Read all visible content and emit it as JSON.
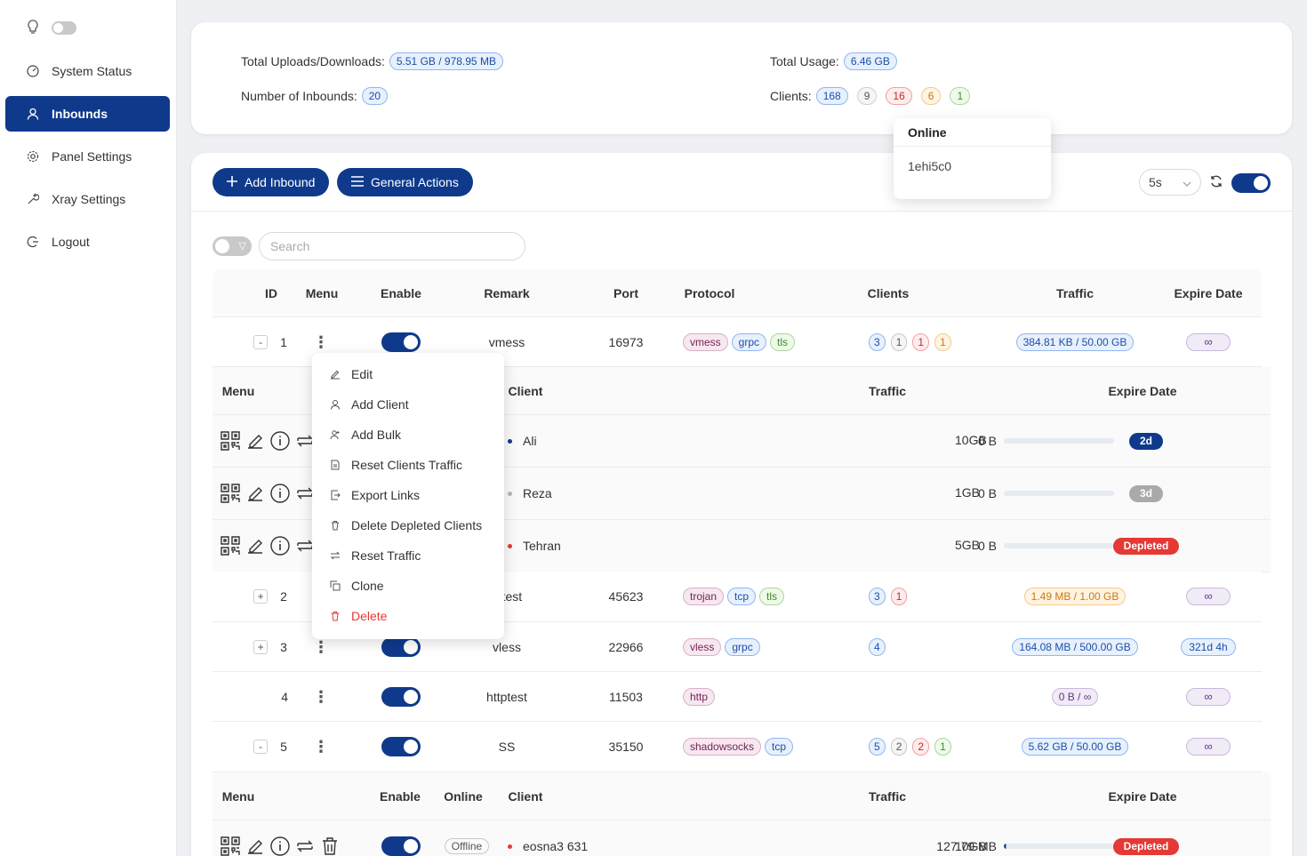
{
  "sidebar": {
    "items": [
      {
        "label": "System Status",
        "icon": "dashboard-icon"
      },
      {
        "label": "Inbounds",
        "icon": "user-icon",
        "active": true
      },
      {
        "label": "Panel Settings",
        "icon": "gear-icon"
      },
      {
        "label": "Xray Settings",
        "icon": "tool-icon"
      },
      {
        "label": "Logout",
        "icon": "logout-icon"
      }
    ]
  },
  "stats": {
    "uploads_label": "Total Uploads/Downloads:",
    "uploads_value": "5.51 GB / 978.95 MB",
    "usage_label": "Total Usage:",
    "usage_value": "6.46 GB",
    "inbounds_label": "Number of Inbounds:",
    "inbounds_value": "20",
    "clients_label": "Clients:",
    "clients_total": "168",
    "clients_disabled": "9",
    "clients_depleted": "16",
    "clients_expiring": "6",
    "clients_online": "1"
  },
  "online_popover": {
    "title": "Online",
    "user": "1ehi5c0"
  },
  "toolbar": {
    "add_inbound": "Add Inbound",
    "general_actions": "General Actions",
    "refresh_interval": "5s",
    "search_placeholder": "Search"
  },
  "table": {
    "headers": {
      "id": "ID",
      "menu": "Menu",
      "enable": "Enable",
      "remark": "Remark",
      "port": "Port",
      "protocol": "Protocol",
      "clients": "Clients",
      "traffic": "Traffic",
      "expire": "Expire Date"
    },
    "rows": [
      {
        "id": "1",
        "expander": "-",
        "remark": "vmess",
        "port": "16973",
        "tags": [
          "vmess",
          "grpc",
          "tls"
        ],
        "counts": [
          "3",
          "1",
          "1",
          "1"
        ],
        "traffic": "384.81 KB / 50.00 GB",
        "expire": "∞"
      },
      {
        "id": "2",
        "expander": "+",
        "remark": "n test",
        "port": "45623",
        "tags": [
          "trojan",
          "tcp",
          "tls"
        ],
        "counts": [
          "3",
          "1"
        ],
        "traffic": "1.49 MB / 1.00 GB",
        "expire": "∞"
      },
      {
        "id": "3",
        "expander": "+",
        "remark": "vless",
        "port": "22966",
        "tags": [
          "vless",
          "grpc"
        ],
        "counts": [
          "4"
        ],
        "traffic": "164.08 MB / 500.00 GB",
        "expire": "321d 4h"
      },
      {
        "id": "4",
        "expander": "",
        "remark": "httptest",
        "port": "11503",
        "tags": [
          "http"
        ],
        "counts": [],
        "traffic": "0 B / ∞",
        "expire": "∞"
      },
      {
        "id": "5",
        "expander": "-",
        "remark": "SS",
        "port": "35150",
        "tags": [
          "shadowsocks",
          "tcp"
        ],
        "counts": [
          "5",
          "2",
          "2",
          "1"
        ],
        "traffic": "5.62 GB / 50.00 GB",
        "expire": "∞"
      }
    ]
  },
  "sub1": {
    "headers": {
      "menu": "Menu",
      "client": "Client",
      "traffic": "Traffic",
      "expire": "Expire Date"
    },
    "rows": [
      {
        "client": "Ali",
        "used": "0 B",
        "total": "10GB",
        "expire": "2d",
        "dot": "#0f3a8c",
        "badge": "#0f3a8c"
      },
      {
        "client": "Reza",
        "used": "0 B",
        "total": "1GB",
        "expire": "3d",
        "dot": "#b5b5b5",
        "badge": "#a9a9a9"
      },
      {
        "client": "Tehran",
        "used": "0 B",
        "total": "5GB",
        "expire": "Depleted",
        "dot": "#e53935",
        "badge": "#e53935"
      }
    ]
  },
  "sub2": {
    "headers": {
      "menu": "Menu",
      "enable": "Enable",
      "online": "Online",
      "client": "Client",
      "traffic": "Traffic",
      "expire": "Expire Date"
    },
    "rows": [
      {
        "online": "Offline",
        "client": "eosna3 631",
        "used": "127.79 MB",
        "total": "10GB",
        "expire": "Depleted"
      }
    ]
  },
  "menu_popover": {
    "items": [
      {
        "label": "Edit",
        "icon": "edit-icon"
      },
      {
        "label": "Add Client",
        "icon": "user-add-icon"
      },
      {
        "label": "Add Bulk",
        "icon": "users-add-icon"
      },
      {
        "label": "Reset Clients Traffic",
        "icon": "file-reset-icon"
      },
      {
        "label": "Export Links",
        "icon": "export-icon"
      },
      {
        "label": "Delete Depleted Clients",
        "icon": "rest-icon"
      },
      {
        "label": "Reset Traffic",
        "icon": "retweet-icon"
      },
      {
        "label": "Clone",
        "icon": "copy-icon"
      },
      {
        "label": "Delete",
        "icon": "delete-icon",
        "danger": true
      }
    ]
  },
  "colors": {
    "primary": "#0f3a8c",
    "danger": "#e53935"
  }
}
